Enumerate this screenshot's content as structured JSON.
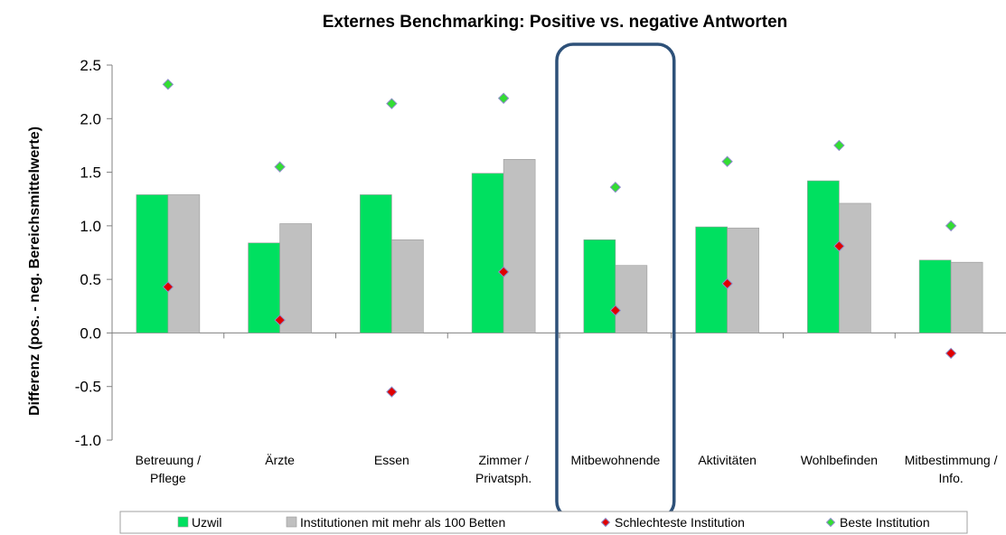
{
  "chart_data": {
    "type": "bar",
    "title": "Externes Benchmarking: Positive vs. negative Antworten",
    "ylabel": "Differenz (pos. - neg. Bereichsmittelwerte)",
    "xlabel": "",
    "ylim": [
      -1.0,
      2.5
    ],
    "yticks": [
      "2.5",
      "2.0",
      "1.5",
      "1.0",
      "0.5",
      "0.0",
      "-0.5",
      "-1.0"
    ],
    "ytick_values": [
      2.5,
      2.0,
      1.5,
      1.0,
      0.5,
      0.0,
      -0.5,
      -1.0
    ],
    "categories": [
      [
        "Betreuung /",
        "Pflege"
      ],
      [
        "Ärzte"
      ],
      [
        "Essen"
      ],
      [
        "Zimmer /",
        "Privatsph."
      ],
      [
        "Mitbewohnende"
      ],
      [
        "Aktivitäten"
      ],
      [
        "Wohlbefinden"
      ],
      [
        "Mitbestimmung /",
        "Info."
      ]
    ],
    "highlighted_category_index": 4,
    "grid": false,
    "legend_position": "bottom",
    "series": [
      {
        "name": "Uzwil",
        "kind": "bar",
        "color": "#00e060",
        "values": [
          1.29,
          0.84,
          1.29,
          1.49,
          0.87,
          0.99,
          1.42,
          0.68
        ]
      },
      {
        "name": "Institutionen mit mehr als 100 Betten",
        "kind": "bar",
        "color": "#c0c0c0",
        "values": [
          1.29,
          1.02,
          0.87,
          1.62,
          0.63,
          0.98,
          1.21,
          0.66
        ]
      },
      {
        "name": "Schlechteste Institution",
        "kind": "marker",
        "color": "#e00000",
        "values": [
          0.43,
          0.12,
          -0.55,
          0.57,
          0.21,
          0.46,
          0.81,
          -0.19
        ]
      },
      {
        "name": "Beste Institution",
        "kind": "marker",
        "color": "#33dd33",
        "values": [
          2.32,
          1.55,
          2.14,
          2.19,
          1.36,
          1.6,
          1.75,
          1.0
        ]
      }
    ]
  }
}
